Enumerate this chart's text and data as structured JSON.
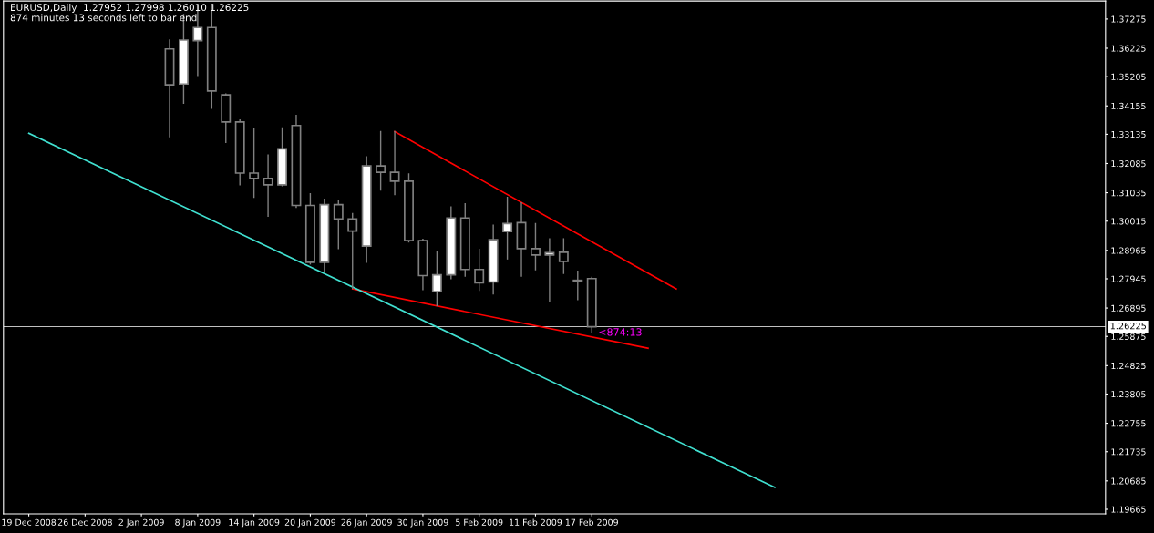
{
  "chart_data": {
    "type": "candlestick",
    "title": "EURUSD,Daily  1.27952 1.27998 1.26010 1.26225",
    "subtitle": "874 minutes 13 seconds left to bar end",
    "categories": [
      "19 Dec 2008",
      null,
      null,
      null,
      "26 Dec 2008",
      null,
      null,
      null,
      "2 Jan 2009",
      null,
      null,
      null,
      "8 Jan 2009",
      null,
      null,
      null,
      "14 Jan 2009",
      null,
      null,
      null,
      "20 Jan 2009",
      null,
      null,
      null,
      "26 Jan 2009",
      null,
      null,
      null,
      "30 Jan 2009",
      null,
      null,
      null,
      "5 Feb 2009",
      null,
      null,
      null,
      "11 Feb 2009",
      null,
      null,
      null,
      "17 Feb 2009",
      null,
      null,
      null,
      null,
      null,
      null,
      null,
      null,
      null,
      null,
      null,
      null,
      null,
      null,
      null,
      null,
      null,
      null,
      null,
      null,
      null,
      null,
      null,
      null,
      null,
      null,
      null,
      null,
      null,
      null,
      null,
      null,
      null,
      null,
      null,
      null
    ],
    "ohlc": [
      null,
      null,
      null,
      null,
      null,
      null,
      null,
      null,
      null,
      null,
      [
        1.362,
        1.3652,
        1.3305,
        1.3491
      ],
      [
        1.3494,
        1.3744,
        1.3425,
        1.3652
      ],
      [
        1.365,
        1.3776,
        1.3525,
        1.3697
      ],
      [
        1.3697,
        1.3776,
        1.3407,
        1.3469
      ],
      [
        1.3455,
        1.3458,
        1.3284,
        1.3358
      ],
      [
        1.3358,
        1.3365,
        1.3132,
        1.3174
      ],
      [
        1.3174,
        1.3332,
        1.3087,
        1.3155
      ],
      [
        1.3155,
        1.3239,
        1.3019,
        1.3132
      ],
      [
        1.3132,
        1.3336,
        1.3129,
        1.3261
      ],
      [
        1.3345,
        1.3381,
        1.3051,
        1.3058
      ],
      [
        1.3058,
        1.31,
        1.2848,
        1.2854
      ],
      [
        1.2854,
        1.308,
        1.2819,
        1.3061
      ],
      [
        1.3061,
        1.3077,
        1.2903,
        1.3009
      ],
      [
        1.3009,
        1.3029,
        1.276,
        1.2966
      ],
      [
        1.2912,
        1.3232,
        1.2854,
        1.32
      ],
      [
        1.32,
        1.3323,
        1.3113,
        1.3177
      ],
      [
        1.3177,
        1.3323,
        1.3097,
        1.3145
      ],
      [
        1.3145,
        1.3171,
        1.2927,
        1.2932
      ],
      [
        1.2932,
        1.2936,
        1.2756,
        1.2806
      ],
      [
        1.2748,
        1.2893,
        1.2698,
        1.2809
      ],
      [
        1.2809,
        1.3052,
        1.2795,
        1.3013
      ],
      [
        1.3013,
        1.3064,
        1.2804,
        1.2828
      ],
      [
        1.2828,
        1.29,
        1.2753,
        1.278
      ],
      [
        1.2783,
        1.2987,
        1.274,
        1.2935
      ],
      [
        1.2964,
        1.3087,
        1.2866,
        1.2993
      ],
      [
        1.2996,
        1.3067,
        1.2804,
        1.2903
      ],
      [
        1.2903,
        1.2993,
        1.2827,
        1.288
      ],
      [
        1.288,
        1.2938,
        1.2714,
        1.2888
      ],
      [
        1.289,
        1.2938,
        1.2814,
        1.2857
      ],
      [
        1.2789,
        1.2822,
        1.272,
        1.2786
      ],
      [
        1.27952,
        1.27998,
        1.2601,
        1.26225
      ],
      null,
      null,
      null,
      null,
      null,
      null,
      null,
      null,
      null,
      null,
      null,
      null,
      null,
      null,
      null,
      null,
      null,
      null,
      null,
      null,
      null,
      null,
      null,
      null,
      null,
      null,
      null,
      null,
      null,
      null,
      null,
      null,
      null,
      null,
      null,
      null
    ],
    "series": [
      {
        "type": "line",
        "color": "#ff0000",
        "values": [
          null,
          null,
          null,
          null,
          null,
          null,
          null,
          null,
          null,
          null,
          null,
          null,
          null,
          null,
          null,
          null,
          null,
          null,
          null,
          null,
          null,
          null,
          null,
          null,
          null,
          null,
          1.3323,
          null,
          null,
          null,
          null,
          null,
          null,
          null,
          null,
          null,
          null,
          null,
          null,
          null,
          null,
          null,
          null,
          null,
          null,
          null,
          1.2758,
          null,
          null,
          null,
          null,
          null,
          null,
          null,
          null,
          null,
          null,
          null,
          null,
          null,
          null,
          null,
          null,
          null,
          null,
          null,
          null,
          null,
          null,
          null,
          null,
          null,
          null,
          null,
          null,
          null,
          null
        ]
      },
      {
        "type": "line",
        "color": "#ff0000",
        "values": [
          null,
          null,
          null,
          null,
          null,
          null,
          null,
          null,
          null,
          null,
          null,
          null,
          null,
          null,
          null,
          null,
          null,
          null,
          null,
          null,
          null,
          null,
          null,
          1.2758,
          null,
          null,
          null,
          null,
          null,
          null,
          null,
          null,
          null,
          null,
          null,
          null,
          null,
          null,
          null,
          null,
          null,
          null,
          null,
          null,
          1.2545,
          null,
          null,
          null,
          null,
          null,
          null,
          null,
          null,
          null,
          null,
          null,
          null,
          null,
          null,
          null,
          null,
          null,
          null,
          null,
          null,
          null,
          null,
          null,
          null,
          null,
          null,
          null,
          null,
          null,
          null,
          null,
          null
        ]
      },
      {
        "type": "line",
        "color": "#40e0d0",
        "values": [
          1.3317,
          null,
          null,
          null,
          null,
          null,
          null,
          null,
          null,
          null,
          null,
          null,
          null,
          null,
          null,
          null,
          null,
          null,
          null,
          null,
          null,
          null,
          null,
          null,
          null,
          null,
          null,
          null,
          null,
          null,
          null,
          null,
          null,
          null,
          null,
          null,
          null,
          null,
          null,
          null,
          null,
          null,
          null,
          null,
          null,
          null,
          null,
          null,
          null,
          null,
          null,
          null,
          null,
          1.2045,
          null,
          null,
          null,
          null,
          null,
          null,
          null,
          null,
          null,
          null,
          null,
          null,
          null,
          null,
          null,
          null,
          null,
          null,
          null,
          null,
          null,
          null,
          null
        ]
      }
    ],
    "ylim": [
      1.19503,
      1.37921
    ],
    "yticks": [
      1.19665,
      1.20685,
      1.21735,
      1.22755,
      1.23805,
      1.24825,
      1.25875,
      1.26895,
      1.27945,
      1.28965,
      1.30015,
      1.31035,
      1.32085,
      1.33135,
      1.34155,
      1.35205,
      1.36225,
      1.37275
    ],
    "ref_lines": [
      {
        "axis": "y",
        "value": 1.26225,
        "label": "1.26225",
        "color": "#c0c0c0"
      }
    ],
    "annotations": [
      {
        "text": "<874:13",
        "x": "17 Feb 2009",
        "y": 1.26225
      }
    ],
    "grid": false,
    "legend": false
  }
}
